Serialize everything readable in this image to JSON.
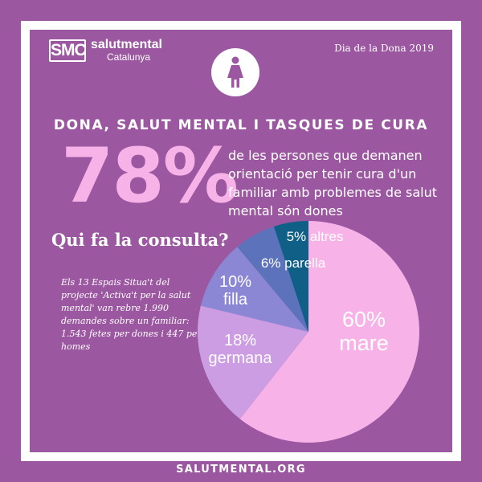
{
  "logo": {
    "box": "SMC",
    "name": "salutmental",
    "sub": "Catalunya"
  },
  "event": "Dia de la Dona 2019",
  "subtitle": "DONA, SALUT MENTAL I TASQUES DE CURA",
  "headline_stat": {
    "value": "78%",
    "text": "de les persones que demanen orientació per tenir cura d'un familiar amb problemes de salut mental són dones"
  },
  "question": "Qui fa la consulta?",
  "note": "Els 13 Espais Situa't del projecte 'Activa't per la salut mental' van rebre 1.990 demandes sobre un familiar: 1.543 fetes per dones i 447 per homes",
  "footer": "SALUTMENTAL.ORG",
  "icons": {
    "woman": "woman-icon"
  },
  "colors": {
    "background": "#9b58a0",
    "accent": "#f7b3e8"
  },
  "chart_data": {
    "type": "pie",
    "slices": [
      {
        "label": "mare",
        "value": 60,
        "display": "60%",
        "color": "#f7b3e8"
      },
      {
        "label": "germana",
        "value": 18,
        "display": "18%",
        "color": "#cc9de3"
      },
      {
        "label": "filla",
        "value": 10,
        "display": "10%",
        "color": "#8c87d5"
      },
      {
        "label": "parella",
        "value": 6,
        "display": "6%",
        "color": "#5c72bb"
      },
      {
        "label": "altres",
        "value": 5,
        "display": "5%",
        "color": "#0f5f87"
      }
    ]
  }
}
